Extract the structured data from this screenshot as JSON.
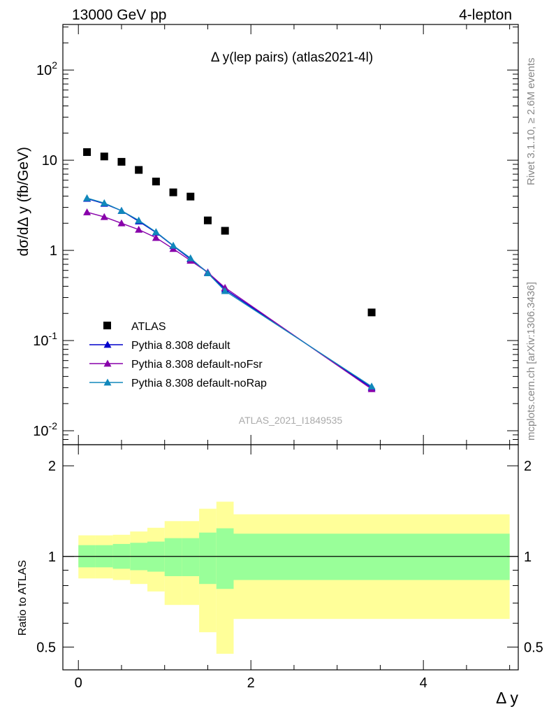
{
  "header": {
    "left": "13000 GeV pp",
    "right": "4-lepton"
  },
  "side_labels": {
    "rivet": "Rivet 3.1.10, ≥ 2.6M events",
    "mcplots": "mcplots.cern.ch [arXiv:1306.3436]"
  },
  "chart_data": {
    "type": "scatter",
    "title": "Δ y(lep pairs) (atlas2021-4l)",
    "watermark": "ATLAS_2021_I1849535",
    "xlabel": "Δ y",
    "ylabel": "dσ/dΔ y (fb/GeV)",
    "ratio_ylabel": "Ratio to ATLAS",
    "xlim": [
      -0.18,
      5.1
    ],
    "ylim": [
      0.007,
      320
    ],
    "yscale": "log",
    "ratio_ylim": [
      0.42,
      2.35
    ],
    "ratio_yscale": "log",
    "x_ticks": [
      "0",
      "2",
      "4"
    ],
    "y_ticks": [
      {
        "base": "10",
        "exp": "-2"
      },
      {
        "base": "10",
        "exp": "-1"
      },
      {
        "base": "1",
        "exp": ""
      },
      {
        "base": "10",
        "exp": ""
      },
      {
        "base": "10",
        "exp": "2"
      }
    ],
    "ratio_ticks": [
      "0.5",
      "1",
      "2"
    ],
    "legend_position": "lower-left",
    "bins": [
      {
        "lo": 0.0,
        "hi": 0.2
      },
      {
        "lo": 0.2,
        "hi": 0.4
      },
      {
        "lo": 0.4,
        "hi": 0.6
      },
      {
        "lo": 0.6,
        "hi": 0.8
      },
      {
        "lo": 0.8,
        "hi": 1.0
      },
      {
        "lo": 1.0,
        "hi": 1.2
      },
      {
        "lo": 1.2,
        "hi": 1.4
      },
      {
        "lo": 1.4,
        "hi": 1.6
      },
      {
        "lo": 1.6,
        "hi": 1.8
      },
      {
        "lo": 1.8,
        "hi": 5.0
      }
    ],
    "data_series": {
      "name": "ATLAS",
      "color": "#000000",
      "x": [
        0.1,
        0.3,
        0.5,
        0.7,
        0.9,
        1.1,
        1.3,
        1.5,
        1.7,
        3.4
      ],
      "y": [
        12.3,
        11.0,
        9.6,
        7.8,
        5.8,
        4.4,
        3.95,
        2.15,
        1.65,
        0.205
      ]
    },
    "band_inner": [
      [
        0.92,
        1.09
      ],
      [
        0.92,
        1.09
      ],
      [
        0.91,
        1.1
      ],
      [
        0.9,
        1.11
      ],
      [
        0.89,
        1.12
      ],
      [
        0.86,
        1.15
      ],
      [
        0.86,
        1.15
      ],
      [
        0.81,
        1.2
      ],
      [
        0.78,
        1.24
      ],
      [
        0.835,
        1.19
      ]
    ],
    "band_outer": [
      [
        0.845,
        1.175
      ],
      [
        0.845,
        1.175
      ],
      [
        0.835,
        1.18
      ],
      [
        0.81,
        1.21
      ],
      [
        0.765,
        1.245
      ],
      [
        0.69,
        1.31
      ],
      [
        0.69,
        1.31
      ],
      [
        0.56,
        1.44
      ],
      [
        0.475,
        1.52
      ],
      [
        0.62,
        1.38
      ]
    ],
    "band_colors": {
      "inner": "#99ff99",
      "outer": "#ffff99"
    },
    "mc_series": [
      {
        "name": "Pythia 8.308 default",
        "color": "#0000cc",
        "x": [
          0.1,
          0.3,
          0.5,
          0.7,
          0.9,
          1.1,
          1.3,
          1.5,
          1.7,
          3.4
        ],
        "y": [
          3.75,
          3.3,
          2.75,
          2.1,
          1.58,
          1.12,
          0.8,
          0.57,
          0.37,
          0.03
        ]
      },
      {
        "name": "Pythia 8.308 default-noFsr",
        "color": "#8800aa",
        "x": [
          0.1,
          0.3,
          0.5,
          0.7,
          0.9,
          1.1,
          1.3,
          1.5,
          1.7,
          3.4
        ],
        "y": [
          2.65,
          2.35,
          2.0,
          1.7,
          1.38,
          1.04,
          0.77,
          0.57,
          0.385,
          0.029
        ]
      },
      {
        "name": "Pythia 8.308 default-noRap",
        "color": "#1188bb",
        "x": [
          0.1,
          0.3,
          0.5,
          0.7,
          0.9,
          1.1,
          1.3,
          1.5,
          1.7,
          3.4
        ],
        "y": [
          3.8,
          3.35,
          2.75,
          2.15,
          1.6,
          1.13,
          0.82,
          0.56,
          0.355,
          0.031
        ]
      }
    ]
  }
}
